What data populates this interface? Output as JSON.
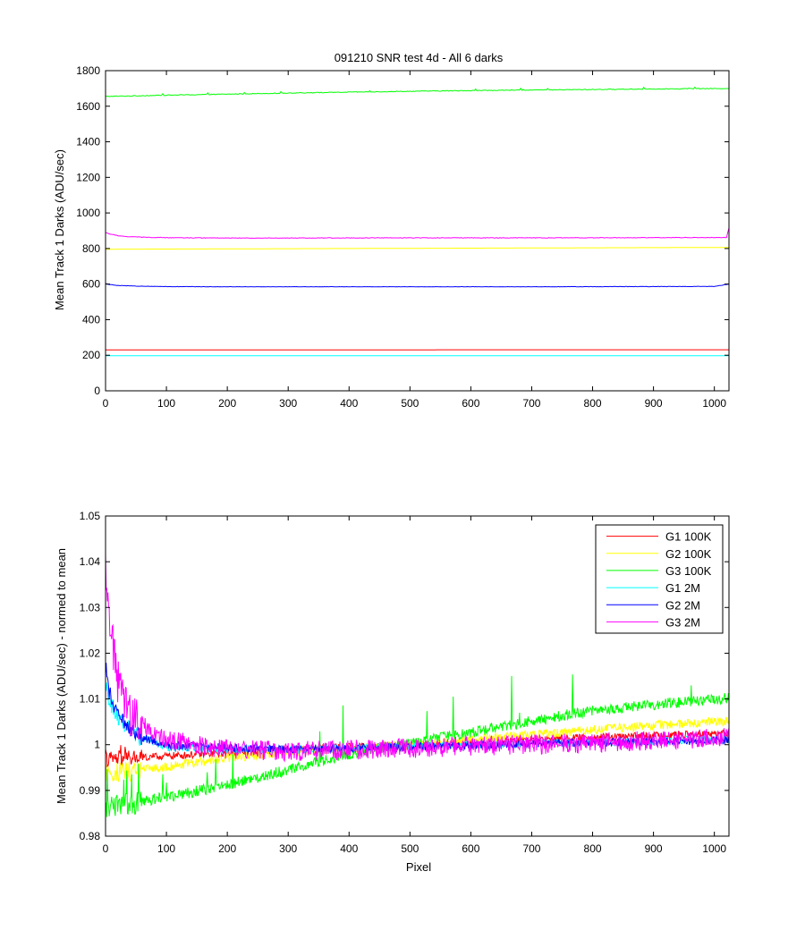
{
  "chart_data": [
    {
      "type": "line",
      "title": "091210  SNR test 4d - All 6 darks",
      "xlabel": "",
      "ylabel": "Mean Track 1 Darks (ADU/sec)",
      "xlim": [
        0,
        1024
      ],
      "ylim": [
        0,
        1800
      ],
      "xticks": [
        "0",
        "100",
        "200",
        "300",
        "400",
        "500",
        "600",
        "700",
        "800",
        "900",
        "1000"
      ],
      "yticks": [
        "0",
        "200",
        "400",
        "600",
        "800",
        "1000",
        "1200",
        "1400",
        "1600",
        "1800"
      ],
      "grid": false,
      "legend": false,
      "series": [
        {
          "color": "#ff0000",
          "x": [
            0,
            1024
          ],
          "y": [
            230,
            231
          ]
        },
        {
          "color": "#ffff00",
          "x": [
            0,
            100,
            200,
            300,
            400,
            500,
            600,
            700,
            800,
            900,
            1024
          ],
          "y": [
            796,
            797,
            798,
            799,
            800,
            801,
            802,
            803,
            804,
            805,
            806
          ]
        },
        {
          "color": "#00ff00",
          "x": [
            0,
            100,
            200,
            300,
            400,
            500,
            600,
            700,
            800,
            900,
            1024
          ],
          "y": [
            1655,
            1662,
            1668,
            1674,
            1679,
            1684,
            1688,
            1691,
            1694,
            1697,
            1700
          ]
        },
        {
          "color": "#00ffff",
          "x": [
            0,
            1024
          ],
          "y": [
            197,
            197
          ]
        },
        {
          "color": "#0000ff",
          "x": [
            0,
            5,
            20,
            50,
            100,
            200,
            300,
            500,
            700,
            900,
            1000,
            1024
          ],
          "y": [
            603,
            598,
            592,
            589,
            586,
            585,
            585,
            585,
            585,
            586,
            587,
            600
          ]
        },
        {
          "color": "#ff00ff",
          "x": [
            0,
            5,
            20,
            40,
            70,
            100,
            200,
            300,
            500,
            700,
            900,
            1020,
            1024
          ],
          "y": [
            890,
            884,
            872,
            866,
            863,
            861,
            859,
            859,
            860,
            860,
            861,
            862,
            915
          ]
        }
      ]
    },
    {
      "type": "line",
      "title": "",
      "xlabel": "Pixel",
      "ylabel": "Mean Track 1 Darks (ADU/sec) - normed to mean",
      "xlim": [
        0,
        1024
      ],
      "ylim": [
        0.98,
        1.05
      ],
      "xticks": [
        "0",
        "100",
        "200",
        "300",
        "400",
        "500",
        "600",
        "700",
        "800",
        "900",
        "1000"
      ],
      "yticks": [
        "0.98",
        "0.99",
        "1",
        "1.01",
        "1.02",
        "1.03",
        "1.04",
        "1.05"
      ],
      "grid": false,
      "legend": "top-right",
      "series": [
        {
          "name": "G1 100K",
          "color": "#ff0000",
          "noise": 0.0008,
          "x": [
            0,
            100,
            200,
            300,
            400,
            500,
            600,
            700,
            800,
            900,
            1024
          ],
          "y": [
            0.9968,
            0.9975,
            0.9982,
            0.999,
            0.9995,
            0.9998,
            1.0004,
            1.0011,
            1.0016,
            1.002,
            1.0025
          ]
        },
        {
          "name": "G2 100K",
          "color": "#ffff00",
          "noise": 0.001,
          "x": [
            0,
            100,
            200,
            300,
            400,
            500,
            600,
            700,
            800,
            900,
            1024
          ],
          "y": [
            0.9935,
            0.9952,
            0.997,
            0.9985,
            0.9992,
            0.9998,
            1.0011,
            1.0022,
            1.0033,
            1.0042,
            1.0052
          ]
        },
        {
          "name": "G3 100K",
          "color": "#00ff00",
          "noise": 0.0012,
          "x": [
            0,
            100,
            200,
            300,
            400,
            500,
            600,
            700,
            800,
            900,
            1024
          ],
          "y": [
            0.9865,
            0.9885,
            0.9912,
            0.9945,
            0.998,
            1.0002,
            1.0028,
            1.0052,
            1.0075,
            1.0088,
            1.0102
          ]
        },
        {
          "name": "G1 2M",
          "color": "#00ffff",
          "noise": 0.0009,
          "x": [
            0,
            5,
            20,
            50,
            100,
            200,
            300,
            500,
            700,
            900,
            1024
          ],
          "y": [
            1.013,
            1.01,
            1.006,
            1.002,
            0.9995,
            0.999,
            0.999,
            0.9996,
            1.0002,
            1.0008,
            1.0012
          ]
        },
        {
          "name": "G2 2M",
          "color": "#0000ff",
          "noise": 0.0009,
          "x": [
            0,
            5,
            20,
            50,
            100,
            200,
            300,
            500,
            700,
            900,
            1024
          ],
          "y": [
            1.017,
            1.012,
            1.006,
            1.002,
            1.0,
            0.9993,
            0.999,
            0.9995,
            1.0002,
            1.0007,
            1.001
          ]
        },
        {
          "name": "G3 2M",
          "color": "#ff00ff",
          "noise": 0.0022,
          "x": [
            0,
            5,
            10,
            20,
            40,
            70,
            100,
            200,
            300,
            500,
            700,
            900,
            1024
          ],
          "y": [
            1.04,
            1.03,
            1.024,
            1.014,
            1.007,
            1.003,
            1.001,
            0.999,
            0.9985,
            0.9993,
            1.0,
            1.001,
            1.0015
          ]
        }
      ]
    }
  ]
}
